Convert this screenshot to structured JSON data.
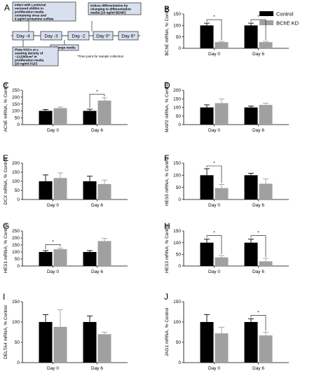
{
  "legend": {
    "entries": [
      {
        "name": "Control",
        "color": "#000000"
      },
      {
        "name": "BChE KD",
        "color": "#a0a0a0"
      }
    ]
  },
  "timeline": {
    "letter": "A",
    "days": [
      "Day -4",
      "Day -3",
      "Day -2",
      "Day 0*",
      "Day 6*"
    ],
    "box_infect": [
      "Infect with Lentiviral",
      "vectored shRNA in",
      "proliferation media",
      "containing virus and",
      "8 µg/ml protamine sulfate"
    ],
    "box_induce": [
      "Induce differentiation by",
      "changing to differentiation",
      "media (10 ng/ml BDNF)"
    ],
    "box_change": [
      "Change media"
    ],
    "box_plate": [
      "Plate NSCs at a",
      "seeding density of",
      "~13,500/cm² in",
      "proliferation media",
      "(20 ng/ml FGF)"
    ],
    "footnote": "*Time point  for sample collection"
  },
  "chart_data": [
    {
      "letter": "B",
      "type": "bar",
      "categories": [
        "Day 0",
        "Day 6"
      ],
      "ylabel": "BChE mRNA, % Control",
      "ylim": [
        0,
        150
      ],
      "yticks": [
        0,
        50,
        100,
        150
      ],
      "series": [
        {
          "name": "Control",
          "values": [
            100,
            100
          ],
          "err": [
            10,
            10
          ]
        },
        {
          "name": "BChE KD",
          "values": [
            27,
            27
          ],
          "err": [
            3,
            4
          ]
        }
      ],
      "sig": [
        {
          "cat": 0,
          "label": "*"
        },
        {
          "cat": 1,
          "label": "*"
        }
      ]
    },
    {
      "letter": "C",
      "type": "bar",
      "categories": [
        "Day 0",
        "Day 6"
      ],
      "ylabel": "AChE mRNA, % Control",
      "ylim": [
        0,
        250
      ],
      "yticks": [
        0,
        50,
        100,
        150,
        200,
        250
      ],
      "series": [
        {
          "name": "Control",
          "values": [
            100,
            100
          ],
          "err": [
            10,
            12
          ]
        },
        {
          "name": "BChE KD",
          "values": [
            120,
            175
          ],
          "err": [
            8,
            20
          ]
        }
      ],
      "sig": [
        {
          "cat": 1,
          "label": "*"
        }
      ]
    },
    {
      "letter": "D",
      "type": "bar",
      "categories": [
        "Day 0",
        "Day 6"
      ],
      "ylabel": "MAP2 mRNA, % Control",
      "ylim": [
        0,
        200
      ],
      "yticks": [
        0,
        50,
        100,
        150,
        200
      ],
      "series": [
        {
          "name": "Control",
          "values": [
            100,
            100
          ],
          "err": [
            15,
            8
          ]
        },
        {
          "name": "BChE KD",
          "values": [
            125,
            115
          ],
          "err": [
            25,
            10
          ]
        }
      ],
      "sig": []
    },
    {
      "letter": "E",
      "type": "bar",
      "categories": [
        "Day 0",
        "Day 6"
      ],
      "ylabel": "DCX mRNA, % Control",
      "ylim": [
        0,
        200
      ],
      "yticks": [
        0,
        50,
        100,
        150,
        200
      ],
      "series": [
        {
          "name": "Control",
          "values": [
            100,
            100
          ],
          "err": [
            35,
            28
          ]
        },
        {
          "name": "BChE KD",
          "values": [
            118,
            85
          ],
          "err": [
            28,
            22
          ]
        }
      ],
      "sig": []
    },
    {
      "letter": "F",
      "type": "bar",
      "categories": [
        "Day 0",
        "Day 6"
      ],
      "ylabel": "HES5 mRNA, % Control",
      "ylim": [
        0,
        150
      ],
      "yticks": [
        0,
        50,
        100,
        150
      ],
      "series": [
        {
          "name": "Control",
          "values": [
            100,
            100
          ],
          "err": [
            27,
            8
          ]
        },
        {
          "name": "BChE KD",
          "values": [
            47,
            65
          ],
          "err": [
            15,
            20
          ]
        }
      ],
      "sig": [
        {
          "cat": 0,
          "label": "*"
        }
      ]
    },
    {
      "letter": "G",
      "type": "bar",
      "categories": [
        "Day 0",
        "Day 6"
      ],
      "ylabel": "HES1 mRNA, % Control",
      "ylim": [
        0,
        250
      ],
      "yticks": [
        0,
        50,
        100,
        150,
        200,
        250
      ],
      "series": [
        {
          "name": "Control",
          "values": [
            100,
            100
          ],
          "err": [
            10,
            10
          ]
        },
        {
          "name": "BChE KD",
          "values": [
            120,
            178
          ],
          "err": [
            8,
            20
          ]
        }
      ],
      "sig": [
        {
          "cat": 0,
          "label": "*"
        }
      ]
    },
    {
      "letter": "H",
      "type": "bar",
      "categories": [
        "Day 0",
        "Day 6"
      ],
      "ylabel": "HES3 mRNA, % Control",
      "ylim": [
        0,
        150
      ],
      "yticks": [
        0,
        50,
        100,
        150
      ],
      "series": [
        {
          "name": "Control",
          "values": [
            100,
            100
          ],
          "err": [
            15,
            15
          ]
        },
        {
          "name": "BChE KD",
          "values": [
            37,
            20
          ],
          "err": [
            8,
            13
          ]
        }
      ],
      "sig": [
        {
          "cat": 0,
          "label": "*"
        },
        {
          "cat": 1,
          "label": "*"
        }
      ]
    },
    {
      "letter": "I",
      "type": "bar",
      "categories": [
        "Day 0",
        "Day 6"
      ],
      "ylabel": "DELTA4 mRNA, % Control",
      "ylim": [
        0,
        150
      ],
      "yticks": [
        0,
        50,
        100,
        150
      ],
      "series": [
        {
          "name": "Control",
          "values": [
            100,
            100
          ],
          "err": [
            18,
            15
          ]
        },
        {
          "name": "BChE KD",
          "values": [
            88,
            70
          ],
          "err": [
            42,
            5
          ]
        }
      ],
      "sig": []
    },
    {
      "letter": "J",
      "type": "bar",
      "categories": [
        "Day 0",
        "Day 6"
      ],
      "ylabel": "JAG1 mRNA, % Control",
      "ylim": [
        0,
        150
      ],
      "yticks": [
        0,
        50,
        100,
        150
      ],
      "series": [
        {
          "name": "Control",
          "values": [
            100,
            100
          ],
          "err": [
            18,
            8
          ]
        },
        {
          "name": "BChE KD",
          "values": [
            72,
            67
          ],
          "err": [
            15,
            8
          ]
        }
      ],
      "sig": [
        {
          "cat": 1,
          "label": "*"
        }
      ]
    }
  ]
}
